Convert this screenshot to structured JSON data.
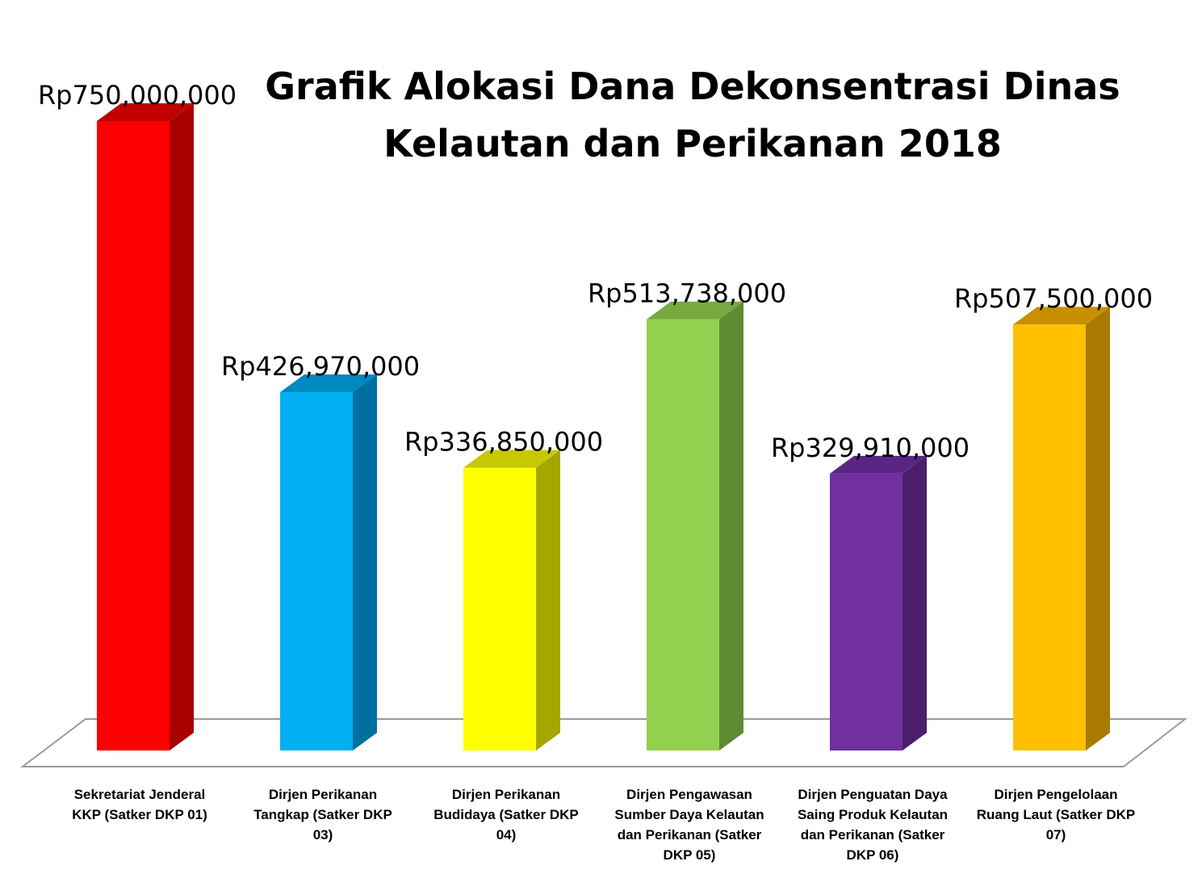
{
  "chart_data": {
    "type": "bar",
    "title_lines": [
      "Grafik Alokasi Dana Dekonsentrasi Dinas",
      "Kelautan dan Perikanan 2018"
    ],
    "xlabel": "",
    "ylabel": "",
    "ylim": [
      0,
      750000000
    ],
    "grid": false,
    "legend": "none",
    "categories": [
      [
        "Sekretariat Jenderal",
        "KKP (Satker DKP 01)"
      ],
      [
        "Dirjen Perikanan",
        "Tangkap (Satker DKP",
        "03)"
      ],
      [
        "Dirjen Perikanan",
        "Budidaya (Satker DKP",
        "04)"
      ],
      [
        "Dirjen Pengawasan",
        "Sumber Daya Kelautan",
        "dan Perikanan (Satker",
        "DKP 05)"
      ],
      [
        "Dirjen Penguatan Daya",
        "Saing Produk Kelautan",
        "dan Perikanan  (Satker",
        "DKP 06)"
      ],
      [
        "Dirjen Pengelolaan",
        "Ruang Laut  (Satker DKP",
        "07)"
      ]
    ],
    "values": [
      750000000,
      426970000,
      336850000,
      513738000,
      329910000,
      507500000
    ],
    "value_labels": [
      "Rp750,000,000",
      "Rp426,970,000",
      "Rp336,850,000",
      "Rp513,738,000",
      "Rp329,910,000",
      "Rp507,500,000"
    ],
    "colors": [
      {
        "front": "#ff0000",
        "side": "#a80000",
        "top": "#c00000"
      },
      {
        "front": "#00b0f0",
        "side": "#0070a0",
        "top": "#0088c0"
      },
      {
        "front": "#ffff00",
        "side": "#a6a600",
        "top": "#c8c800"
      },
      {
        "front": "#92d050",
        "side": "#5e8a32",
        "top": "#76aa40"
      },
      {
        "front": "#7030a0",
        "side": "#4a1e6a",
        "top": "#5a2684"
      },
      {
        "front": "#ffc000",
        "side": "#a87a00",
        "top": "#c89000"
      }
    ]
  }
}
